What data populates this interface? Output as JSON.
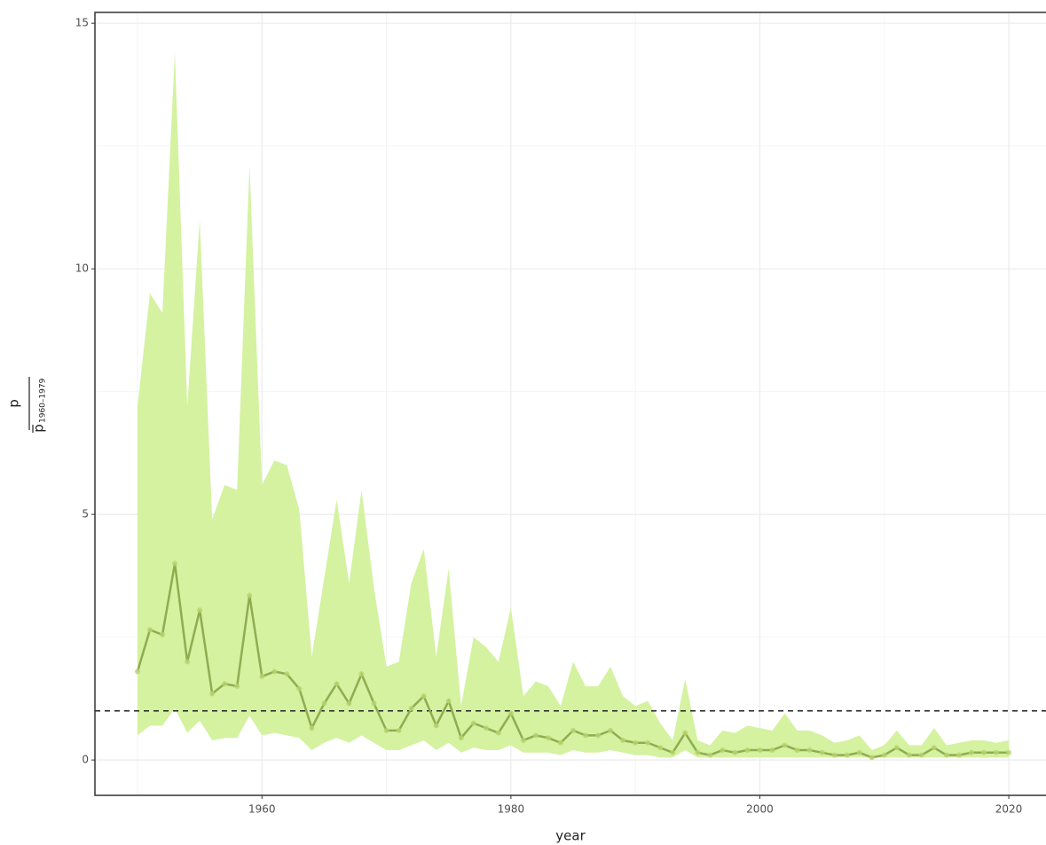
{
  "chart_data": {
    "type": "line",
    "x_label": "year",
    "y_label": {
      "numerator": "p",
      "denominator": "p",
      "subscript": "1960–1979"
    },
    "x": [
      1950,
      1951,
      1952,
      1953,
      1954,
      1955,
      1956,
      1957,
      1958,
      1959,
      1960,
      1961,
      1962,
      1963,
      1964,
      1965,
      1966,
      1967,
      1968,
      1969,
      1970,
      1971,
      1972,
      1973,
      1974,
      1975,
      1976,
      1977,
      1978,
      1979,
      1980,
      1981,
      1982,
      1983,
      1984,
      1985,
      1986,
      1987,
      1988,
      1989,
      1990,
      1991,
      1992,
      1993,
      1994,
      1995,
      1996,
      1997,
      1998,
      1999,
      2000,
      2001,
      2002,
      2003,
      2004,
      2005,
      2006,
      2007,
      2008,
      2009,
      2010,
      2011,
      2012,
      2013,
      2014,
      2015,
      2016,
      2017,
      2018,
      2019,
      2020
    ],
    "series": [
      {
        "color": "#8fac52",
        "point_color": "#b8d56e",
        "values": [
          1.8,
          2.65,
          2.55,
          4.0,
          2.0,
          3.05,
          1.35,
          1.55,
          1.5,
          3.35,
          1.7,
          1.8,
          1.75,
          1.45,
          0.65,
          1.15,
          1.55,
          1.15,
          1.75,
          1.15,
          0.6,
          0.6,
          1.05,
          1.3,
          0.7,
          1.2,
          0.45,
          0.75,
          0.65,
          0.55,
          0.95,
          0.4,
          0.5,
          0.45,
          0.35,
          0.6,
          0.5,
          0.5,
          0.6,
          0.4,
          0.35,
          0.35,
          0.25,
          0.15,
          0.55,
          0.15,
          0.1,
          0.2,
          0.15,
          0.2,
          0.2,
          0.2,
          0.3,
          0.2,
          0.2,
          0.15,
          0.1,
          0.1,
          0.15,
          0.05,
          0.1,
          0.25,
          0.1,
          0.1,
          0.25,
          0.1,
          0.1,
          0.15,
          0.15,
          0.15,
          0.15
        ]
      }
    ],
    "band": {
      "color": "#d4f2a0",
      "upper": [
        7.2,
        9.5,
        9.1,
        14.4,
        7.2,
        11.0,
        4.9,
        5.6,
        5.5,
        12.1,
        5.6,
        6.1,
        6.0,
        5.1,
        2.1,
        3.7,
        5.3,
        3.6,
        5.5,
        3.5,
        1.9,
        2.0,
        3.6,
        4.3,
        2.1,
        3.9,
        1.1,
        2.5,
        2.3,
        2.0,
        3.1,
        1.3,
        1.6,
        1.5,
        1.1,
        2.0,
        1.5,
        1.5,
        1.9,
        1.3,
        1.1,
        1.2,
        0.75,
        0.4,
        1.65,
        0.4,
        0.3,
        0.6,
        0.55,
        0.7,
        0.65,
        0.6,
        0.95,
        0.6,
        0.6,
        0.5,
        0.35,
        0.4,
        0.5,
        0.2,
        0.3,
        0.6,
        0.3,
        0.3,
        0.65,
        0.3,
        0.35,
        0.4,
        0.4,
        0.35,
        0.4
      ],
      "lower": [
        0.5,
        0.7,
        0.7,
        1.05,
        0.55,
        0.8,
        0.4,
        0.45,
        0.45,
        0.9,
        0.5,
        0.55,
        0.5,
        0.45,
        0.2,
        0.35,
        0.45,
        0.35,
        0.5,
        0.35,
        0.2,
        0.2,
        0.3,
        0.4,
        0.2,
        0.35,
        0.15,
        0.25,
        0.2,
        0.2,
        0.3,
        0.15,
        0.15,
        0.15,
        0.1,
        0.2,
        0.15,
        0.15,
        0.2,
        0.15,
        0.1,
        0.1,
        0.05,
        0.05,
        0.2,
        0.05,
        0.05,
        0.05,
        0.05,
        0.05,
        0.05,
        0.05,
        0.05,
        0.05,
        0.05,
        0.05,
        0.05,
        0.05,
        0.05,
        0.05,
        0.05,
        0.05,
        0.05,
        0.05,
        0.05,
        0.05,
        0.05,
        0.05,
        0.05,
        0.05,
        0.05
      ]
    },
    "hline": 1,
    "xlim": [
      1946.58,
      2022.99
    ],
    "ylim": [
      -0.72,
      15.22
    ],
    "xticks": [
      1960,
      1980,
      2000,
      2020
    ],
    "yticks": [
      0,
      5,
      10,
      15
    ],
    "x_minor_grid": [
      1950,
      1970,
      1990,
      2010
    ],
    "y_minor_grid": [
      2.5,
      7.5,
      12.5
    ],
    "grid": true
  }
}
